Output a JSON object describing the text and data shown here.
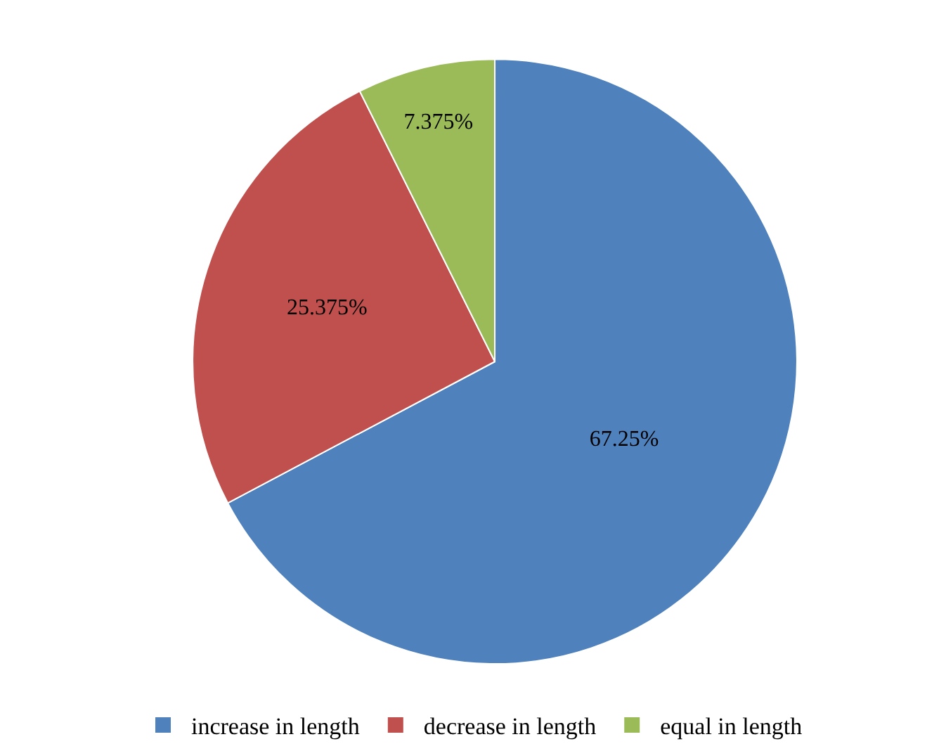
{
  "chart_data": {
    "type": "pie",
    "categories": [
      "increase in length",
      "decrease in length",
      "equal in length"
    ],
    "values": [
      67.25,
      25.375,
      7.375
    ],
    "colors": [
      "#4f81bd",
      "#c0504d",
      "#9bbb59"
    ],
    "value_labels": [
      "67.25%",
      "25.375%",
      "7.375%"
    ],
    "legend": "bottom"
  }
}
